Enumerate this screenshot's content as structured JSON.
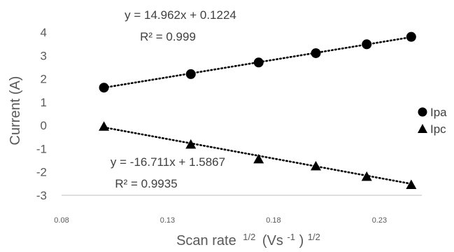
{
  "chart_data": {
    "type": "scatter",
    "xlabel": "Scan rate",
    "xlabel_suffix": "1/2",
    "xlabel_unit": "(Vs",
    "xlabel_unit_exp": "-1",
    "xlabel_unit_close": ")",
    "xlabel_unit_close_exp": "1/2",
    "ylabel": "Current (A)",
    "xlim": [
      0.08,
      0.25
    ],
    "ylim": [
      -3,
      4
    ],
    "x_ticks": [
      "0.08",
      "0.13",
      "0.18",
      "0.23"
    ],
    "y_ticks": [
      "4",
      "3",
      "2",
      "1",
      "0",
      "-1",
      "-2",
      "-3"
    ],
    "grid": false,
    "legend_position": "right",
    "series": [
      {
        "name": "Ipa",
        "marker": "circle",
        "color": "#000000",
        "x": [
          0.1,
          0.141,
          0.173,
          0.2,
          0.224,
          0.245
        ],
        "y": [
          1.62,
          2.2,
          2.7,
          3.1,
          3.48,
          3.8
        ],
        "trendline": {
          "slope": 14.962,
          "intercept": 0.1224,
          "equation": "y = 14.962x + 0.1224",
          "r2": "R² = 0.999"
        }
      },
      {
        "name": "Ipc",
        "marker": "triangle",
        "color": "#000000",
        "x": [
          0.1,
          0.141,
          0.173,
          0.2,
          0.224,
          0.245
        ],
        "y": [
          -0.05,
          -0.82,
          -1.45,
          -1.75,
          -2.2,
          -2.55
        ],
        "trendline": {
          "slope": -16.711,
          "intercept": 1.5867,
          "equation": "y = -16.711x + 1.5867",
          "r2": "R² = 0.9935"
        }
      }
    ]
  }
}
